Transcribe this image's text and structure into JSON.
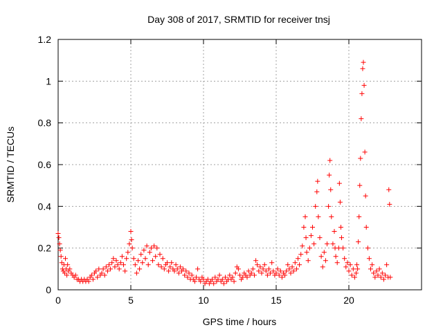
{
  "chart_data": {
    "type": "scatter",
    "title": "Day 308 of 2017, SRMTID for receiver tnsj",
    "xlabel": "GPS time / hours",
    "ylabel": "SRMTID / TECUs",
    "xlim": [
      0,
      25
    ],
    "ylim": [
      0,
      1.2
    ],
    "x_ticks": [
      0,
      5,
      10,
      15,
      20
    ],
    "x_tick_labels": [
      "0",
      "5",
      "10",
      "15",
      "20"
    ],
    "y_ticks": [
      0,
      0.2,
      0.4,
      0.6,
      0.8,
      1.0,
      1.2
    ],
    "y_tick_labels": [
      "0",
      "0.2",
      "0.4",
      "0.6",
      "0.8",
      "1",
      "1.2"
    ],
    "grid": true,
    "marker": "+",
    "color": "#ff0000",
    "series": [
      {
        "name": "SRMTID",
        "points": [
          [
            0.0,
            0.27
          ],
          [
            0.05,
            0.25
          ],
          [
            0.1,
            0.22
          ],
          [
            0.15,
            0.19
          ],
          [
            0.2,
            0.16
          ],
          [
            0.25,
            0.13
          ],
          [
            0.3,
            0.1
          ],
          [
            0.35,
            0.09
          ],
          [
            0.4,
            0.12
          ],
          [
            0.45,
            0.08
          ],
          [
            0.5,
            0.15
          ],
          [
            0.55,
            0.1
          ],
          [
            0.6,
            0.07
          ],
          [
            0.65,
            0.12
          ],
          [
            0.7,
            0.09
          ],
          [
            0.8,
            0.1
          ],
          [
            0.9,
            0.08
          ],
          [
            1.0,
            0.07
          ],
          [
            1.1,
            0.06
          ],
          [
            1.2,
            0.07
          ],
          [
            1.3,
            0.05
          ],
          [
            1.4,
            0.05
          ],
          [
            1.5,
            0.04
          ],
          [
            1.6,
            0.05
          ],
          [
            1.7,
            0.04
          ],
          [
            1.8,
            0.05
          ],
          [
            1.9,
            0.04
          ],
          [
            2.0,
            0.05
          ],
          [
            2.1,
            0.04
          ],
          [
            2.2,
            0.06
          ],
          [
            2.3,
            0.07
          ],
          [
            2.4,
            0.05
          ],
          [
            2.5,
            0.08
          ],
          [
            2.6,
            0.09
          ],
          [
            2.7,
            0.06
          ],
          [
            2.8,
            0.1
          ],
          [
            2.9,
            0.07
          ],
          [
            3.0,
            0.08
          ],
          [
            3.1,
            0.1
          ],
          [
            3.2,
            0.07
          ],
          [
            3.3,
            0.11
          ],
          [
            3.4,
            0.09
          ],
          [
            3.5,
            0.12
          ],
          [
            3.6,
            0.1
          ],
          [
            3.7,
            0.13
          ],
          [
            3.8,
            0.15
          ],
          [
            3.9,
            0.11
          ],
          [
            4.0,
            0.14
          ],
          [
            4.1,
            0.12
          ],
          [
            4.2,
            0.1
          ],
          [
            4.3,
            0.13
          ],
          [
            4.4,
            0.16
          ],
          [
            4.5,
            0.12
          ],
          [
            4.6,
            0.09
          ],
          [
            4.7,
            0.15
          ],
          [
            4.8,
            0.18
          ],
          [
            4.9,
            0.22
          ],
          [
            5.0,
            0.28
          ],
          [
            5.05,
            0.24
          ],
          [
            5.1,
            0.2
          ],
          [
            5.2,
            0.15
          ],
          [
            5.3,
            0.12
          ],
          [
            5.4,
            0.08
          ],
          [
            5.5,
            0.14
          ],
          [
            5.6,
            0.1
          ],
          [
            5.7,
            0.17
          ],
          [
            5.8,
            0.13
          ],
          [
            5.9,
            0.19
          ],
          [
            6.0,
            0.15
          ],
          [
            6.1,
            0.21
          ],
          [
            6.2,
            0.12
          ],
          [
            6.3,
            0.18
          ],
          [
            6.4,
            0.2
          ],
          [
            6.5,
            0.14
          ],
          [
            6.6,
            0.21
          ],
          [
            6.7,
            0.16
          ],
          [
            6.8,
            0.2
          ],
          [
            6.9,
            0.12
          ],
          [
            7.0,
            0.17
          ],
          [
            7.1,
            0.11
          ],
          [
            7.2,
            0.15
          ],
          [
            7.3,
            0.1
          ],
          [
            7.4,
            0.12
          ],
          [
            7.5,
            0.13
          ],
          [
            7.6,
            0.09
          ],
          [
            7.7,
            0.11
          ],
          [
            7.8,
            0.13
          ],
          [
            7.9,
            0.1
          ],
          [
            8.0,
            0.09
          ],
          [
            8.1,
            0.12
          ],
          [
            8.2,
            0.1
          ],
          [
            8.3,
            0.08
          ],
          [
            8.4,
            0.11
          ],
          [
            8.5,
            0.09
          ],
          [
            8.6,
            0.1
          ],
          [
            8.7,
            0.07
          ],
          [
            8.8,
            0.09
          ],
          [
            8.9,
            0.06
          ],
          [
            9.0,
            0.08
          ],
          [
            9.1,
            0.05
          ],
          [
            9.2,
            0.07
          ],
          [
            9.3,
            0.05
          ],
          [
            9.4,
            0.04
          ],
          [
            9.5,
            0.06
          ],
          [
            9.6,
            0.1
          ],
          [
            9.7,
            0.05
          ],
          [
            9.8,
            0.04
          ],
          [
            9.9,
            0.06
          ],
          [
            10.0,
            0.05
          ],
          [
            10.1,
            0.03
          ],
          [
            10.2,
            0.04
          ],
          [
            10.3,
            0.05
          ],
          [
            10.4,
            0.03
          ],
          [
            10.5,
            0.04
          ],
          [
            10.6,
            0.05
          ],
          [
            10.7,
            0.03
          ],
          [
            10.8,
            0.06
          ],
          [
            10.9,
            0.04
          ],
          [
            11.0,
            0.05
          ],
          [
            11.1,
            0.07
          ],
          [
            11.2,
            0.04
          ],
          [
            11.3,
            0.05
          ],
          [
            11.4,
            0.03
          ],
          [
            11.5,
            0.06
          ],
          [
            11.6,
            0.04
          ],
          [
            11.7,
            0.05
          ],
          [
            11.8,
            0.07
          ],
          [
            11.9,
            0.05
          ],
          [
            12.0,
            0.06
          ],
          [
            12.1,
            0.04
          ],
          [
            12.2,
            0.08
          ],
          [
            12.3,
            0.11
          ],
          [
            12.4,
            0.1
          ],
          [
            12.5,
            0.07
          ],
          [
            12.6,
            0.05
          ],
          [
            12.7,
            0.06
          ],
          [
            12.8,
            0.08
          ],
          [
            12.9,
            0.07
          ],
          [
            13.0,
            0.06
          ],
          [
            13.1,
            0.09
          ],
          [
            13.2,
            0.07
          ],
          [
            13.3,
            0.08
          ],
          [
            13.4,
            0.1
          ],
          [
            13.5,
            0.07
          ],
          [
            13.6,
            0.14
          ],
          [
            13.7,
            0.12
          ],
          [
            13.8,
            0.09
          ],
          [
            13.9,
            0.11
          ],
          [
            14.0,
            0.08
          ],
          [
            14.1,
            0.1
          ],
          [
            14.2,
            0.12
          ],
          [
            14.3,
            0.09
          ],
          [
            14.4,
            0.07
          ],
          [
            14.5,
            0.1
          ],
          [
            14.6,
            0.08
          ],
          [
            14.7,
            0.13
          ],
          [
            14.8,
            0.09
          ],
          [
            14.9,
            0.07
          ],
          [
            15.0,
            0.08
          ],
          [
            15.1,
            0.1
          ],
          [
            15.2,
            0.07
          ],
          [
            15.3,
            0.09
          ],
          [
            15.4,
            0.06
          ],
          [
            15.5,
            0.08
          ],
          [
            15.6,
            0.07
          ],
          [
            15.7,
            0.09
          ],
          [
            15.8,
            0.12
          ],
          [
            15.9,
            0.1
          ],
          [
            16.0,
            0.08
          ],
          [
            16.1,
            0.11
          ],
          [
            16.2,
            0.09
          ],
          [
            16.3,
            0.13
          ],
          [
            16.4,
            0.1
          ],
          [
            16.5,
            0.15
          ],
          [
            16.6,
            0.12
          ],
          [
            16.7,
            0.17
          ],
          [
            16.8,
            0.21
          ],
          [
            16.9,
            0.3
          ],
          [
            17.0,
            0.35
          ],
          [
            17.05,
            0.25
          ],
          [
            17.1,
            0.18
          ],
          [
            17.2,
            0.14
          ],
          [
            17.3,
            0.2
          ],
          [
            17.4,
            0.26
          ],
          [
            17.5,
            0.3
          ],
          [
            17.6,
            0.22
          ],
          [
            17.7,
            0.4
          ],
          [
            17.8,
            0.47
          ],
          [
            17.85,
            0.52
          ],
          [
            17.9,
            0.35
          ],
          [
            18.0,
            0.25
          ],
          [
            18.1,
            0.16
          ],
          [
            18.2,
            0.11
          ],
          [
            18.3,
            0.18
          ],
          [
            18.4,
            0.14
          ],
          [
            18.5,
            0.22
          ],
          [
            18.6,
            0.4
          ],
          [
            18.65,
            0.55
          ],
          [
            18.7,
            0.62
          ],
          [
            18.75,
            0.48
          ],
          [
            18.8,
            0.35
          ],
          [
            18.9,
            0.22
          ],
          [
            19.0,
            0.28
          ],
          [
            19.05,
            0.2
          ],
          [
            19.1,
            0.16
          ],
          [
            19.2,
            0.13
          ],
          [
            19.3,
            0.2
          ],
          [
            19.35,
            0.51
          ],
          [
            19.4,
            0.42
          ],
          [
            19.45,
            0.3
          ],
          [
            19.5,
            0.25
          ],
          [
            19.6,
            0.2
          ],
          [
            19.7,
            0.15
          ],
          [
            19.8,
            0.11
          ],
          [
            19.9,
            0.13
          ],
          [
            20.0,
            0.09
          ],
          [
            20.1,
            0.12
          ],
          [
            20.2,
            0.07
          ],
          [
            20.3,
            0.1
          ],
          [
            20.4,
            0.06
          ],
          [
            20.5,
            0.08
          ],
          [
            20.55,
            0.12
          ],
          [
            20.6,
            0.1
          ],
          [
            20.65,
            0.23
          ],
          [
            20.7,
            0.35
          ],
          [
            20.75,
            0.5
          ],
          [
            20.8,
            0.63
          ],
          [
            20.85,
            0.82
          ],
          [
            20.9,
            0.94
          ],
          [
            20.95,
            1.06
          ],
          [
            21.0,
            1.09
          ],
          [
            21.05,
            0.98
          ],
          [
            21.1,
            0.66
          ],
          [
            21.15,
            0.45
          ],
          [
            21.2,
            0.3
          ],
          [
            21.3,
            0.2
          ],
          [
            21.4,
            0.15
          ],
          [
            21.5,
            0.1
          ],
          [
            21.6,
            0.12
          ],
          [
            21.7,
            0.08
          ],
          [
            21.8,
            0.06
          ],
          [
            21.9,
            0.09
          ],
          [
            22.0,
            0.07
          ],
          [
            22.1,
            0.1
          ],
          [
            22.2,
            0.06
          ],
          [
            22.3,
            0.08
          ],
          [
            22.4,
            0.05
          ],
          [
            22.5,
            0.07
          ],
          [
            22.6,
            0.12
          ],
          [
            22.7,
            0.06
          ],
          [
            22.75,
            0.48
          ],
          [
            22.8,
            0.41
          ],
          [
            22.85,
            0.06
          ]
        ]
      }
    ]
  }
}
